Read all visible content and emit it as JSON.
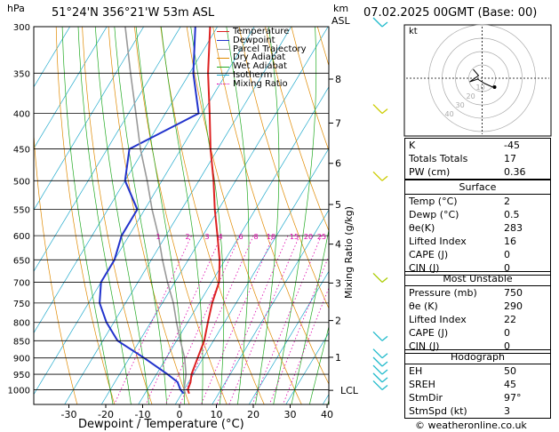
{
  "header": {
    "pressure_unit": "hPa",
    "location": "51°24'N  356°21'W  53m  ASL",
    "km_label": "km",
    "asl_label": "ASL",
    "datetime": "07.02.2025  00GMT  (Base: 00)"
  },
  "footer": {
    "credit": "© weatheronline.co.uk"
  },
  "chart_data": {
    "type": "line",
    "xlabel": "Dewpoint / Temperature (°C)",
    "ylabel_left": "hPa",
    "ylabel_right": "Mixing Ratio (g/kg)",
    "x_ticks": [
      -30,
      -20,
      -10,
      0,
      10,
      20,
      30,
      40
    ],
    "xlim": [
      -40,
      40
    ],
    "pressure_levels": [
      300,
      350,
      400,
      450,
      500,
      550,
      600,
      650,
      700,
      750,
      800,
      850,
      900,
      950,
      1000
    ],
    "ylim": [
      300,
      1050
    ],
    "km_ticks": [
      {
        "label": "8",
        "p": 357
      },
      {
        "label": "7",
        "p": 413
      },
      {
        "label": "6",
        "p": 472
      },
      {
        "label": "5",
        "p": 541
      },
      {
        "label": "4",
        "p": 617
      },
      {
        "label": "3",
        "p": 702
      },
      {
        "label": "2",
        "p": 795
      },
      {
        "label": "1",
        "p": 898
      },
      {
        "label": "LCL",
        "p": 1002
      }
    ],
    "mixing_ratio_labels": [
      "1",
      "2",
      "3",
      "4",
      "6",
      "8",
      "10",
      "15",
      "20",
      "25"
    ],
    "mixing_ratio_values": [
      1,
      2,
      3,
      4,
      6,
      8,
      10,
      15,
      20,
      25
    ],
    "legend": [
      {
        "name": "Temperature",
        "color": "#dd2222",
        "style": "solid"
      },
      {
        "name": "Dewpoint",
        "color": "#2233cc",
        "style": "solid"
      },
      {
        "name": "Parcel Trajectory",
        "color": "#999999",
        "style": "solid"
      },
      {
        "name": "Dry Adiabat",
        "color": "#e08a00",
        "style": "solid"
      },
      {
        "name": "Wet Adiabat",
        "color": "#22aa22",
        "style": "solid"
      },
      {
        "name": "Isotherm",
        "color": "#22aacc",
        "style": "solid"
      },
      {
        "name": "Mixing Ratio",
        "color": "#dd00aa",
        "style": "dotted"
      }
    ],
    "series": [
      {
        "name": "Temperature",
        "points": [
          [
            2,
            1013
          ],
          [
            1,
            1000
          ],
          [
            0.5,
            975
          ],
          [
            -0.5,
            950
          ],
          [
            -1.5,
            900
          ],
          [
            -2.5,
            850
          ],
          [
            -4.5,
            800
          ],
          [
            -6.5,
            750
          ],
          [
            -8,
            700
          ],
          [
            -11.5,
            650
          ],
          [
            -16,
            600
          ],
          [
            -21,
            550
          ],
          [
            -26,
            500
          ],
          [
            -32,
            450
          ],
          [
            -38,
            400
          ],
          [
            -45,
            350
          ],
          [
            -52,
            300
          ]
        ]
      },
      {
        "name": "Dewpoint",
        "points": [
          [
            0.5,
            1013
          ],
          [
            -1,
            1000
          ],
          [
            -3,
            975
          ],
          [
            -7,
            950
          ],
          [
            -16,
            900
          ],
          [
            -26,
            850
          ],
          [
            -32,
            800
          ],
          [
            -37,
            750
          ],
          [
            -40,
            700
          ],
          [
            -40,
            650
          ],
          [
            -42,
            600
          ],
          [
            -42,
            550
          ],
          [
            -50,
            500
          ],
          [
            -54,
            450
          ],
          [
            -41,
            400
          ],
          [
            -49,
            350
          ],
          [
            -56,
            300
          ]
        ]
      },
      {
        "name": "Parcel Trajectory",
        "points": [
          [
            1,
            1013
          ],
          [
            0,
            1000
          ],
          [
            -2,
            950
          ],
          [
            -5,
            900
          ],
          [
            -9,
            850
          ],
          [
            -13,
            800
          ],
          [
            -17,
            750
          ],
          [
            -22,
            700
          ],
          [
            -27,
            650
          ],
          [
            -32,
            600
          ],
          [
            -38,
            550
          ],
          [
            -44,
            500
          ],
          [
            -51,
            450
          ],
          [
            -58,
            400
          ],
          [
            -66,
            350
          ],
          [
            -75,
            300
          ]
        ]
      }
    ]
  },
  "hodograph": {
    "label": "kt",
    "ring_labels": [
      "40",
      "30",
      "20",
      "10"
    ]
  },
  "indices": [
    {
      "label": "K",
      "value": "-45"
    },
    {
      "label": "Totals Totals",
      "value": "17"
    },
    {
      "label": "PW (cm)",
      "value": "0.36"
    }
  ],
  "surface": {
    "title": "Surface",
    "rows": [
      {
        "label": "Temp (°C)",
        "value": "2"
      },
      {
        "label": "Dewp (°C)",
        "value": "0.5"
      },
      {
        "label": "θe(K)",
        "value": "283"
      },
      {
        "label": "Lifted Index",
        "value": "16"
      },
      {
        "label": "CAPE (J)",
        "value": "0"
      },
      {
        "label": "CIN (J)",
        "value": "0"
      }
    ]
  },
  "most_unstable": {
    "title": "Most Unstable",
    "rows": [
      {
        "label": "Pressure (mb)",
        "value": "750"
      },
      {
        "label": "θe (K)",
        "value": "290"
      },
      {
        "label": "Lifted Index",
        "value": "22"
      },
      {
        "label": "CAPE (J)",
        "value": "0"
      },
      {
        "label": "CIN (J)",
        "value": "0"
      }
    ]
  },
  "hodo_table": {
    "title": "Hodograph",
    "rows": [
      {
        "label": "EH",
        "value": "50"
      },
      {
        "label": "SREH",
        "value": "45"
      },
      {
        "label": "StmDir",
        "value": "97°"
      },
      {
        "label": "StmSpd (kt)",
        "value": "3"
      }
    ]
  }
}
